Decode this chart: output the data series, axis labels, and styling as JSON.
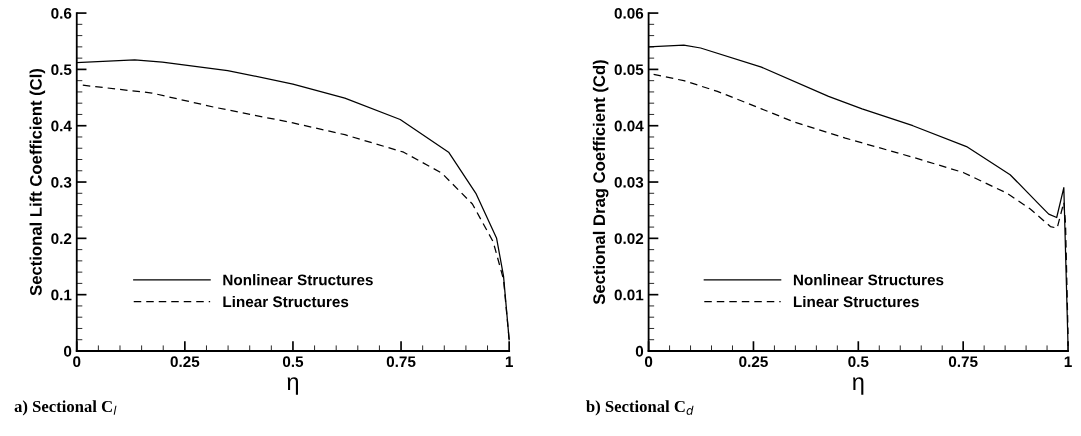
{
  "chart_data": [
    {
      "type": "line",
      "xlabel": "η",
      "ylabel": "Sectional Lift Coefficient (Cl)",
      "xlim": [
        0,
        1
      ],
      "ylim": [
        0,
        0.6
      ],
      "xticks": [
        0,
        0.25,
        0.5,
        0.75,
        1
      ],
      "yticks": [
        0,
        0.1,
        0.2,
        0.3,
        0.4,
        0.5,
        0.6
      ],
      "grid": false,
      "legend": "bottom left",
      "annotations": [
        "a) Sectional C$_{l}$"
      ],
      "series": [
        {
          "name": "Nonlinear Structures",
          "color": "#000000",
          "line_style": "solid",
          "x": [
            0,
            0.134,
            0.198,
            0.349,
            0.5,
            0.62,
            0.748,
            0.86,
            0.923,
            0.971,
            0.987,
            1.0
          ],
          "values": [
            0.512,
            0.517,
            0.513,
            0.498,
            0.474,
            0.449,
            0.411,
            0.353,
            0.28,
            0.2,
            0.133,
            0.02
          ]
        },
        {
          "name": "Linear Structures",
          "color": "#000000",
          "line_style": "dashed",
          "x": [
            0.014,
            0.174,
            0.317,
            0.5,
            0.62,
            0.756,
            0.844,
            0.915,
            0.963,
            0.987,
            1.0
          ],
          "values": [
            0.472,
            0.458,
            0.433,
            0.405,
            0.384,
            0.353,
            0.316,
            0.261,
            0.194,
            0.127,
            0.02
          ]
        }
      ]
    },
    {
      "type": "line",
      "xlabel": "η",
      "ylabel": "Sectional Drag Coefficient (Cd)",
      "xlim": [
        0,
        1
      ],
      "ylim": [
        0,
        0.06
      ],
      "xticks": [
        0,
        0.25,
        0.5,
        0.75,
        1
      ],
      "yticks": [
        0,
        0.01,
        0.02,
        0.03,
        0.04,
        0.05,
        0.06
      ],
      "grid": false,
      "legend": "bottom left",
      "annotations": [
        "b) Sectional C$_{d}$"
      ],
      "series": [
        {
          "name": "Nonlinear Structures",
          "color": "#000000",
          "line_style": "solid",
          "x": [
            0,
            0.084,
            0.124,
            0.269,
            0.429,
            0.509,
            0.63,
            0.758,
            0.862,
            0.934,
            0.954,
            0.973,
            0.99,
            1.0
          ],
          "values": [
            0.054,
            0.0543,
            0.0538,
            0.0504,
            0.0452,
            0.043,
            0.04,
            0.0363,
            0.0313,
            0.0258,
            0.0243,
            0.0237,
            0.029,
            0.001
          ]
        },
        {
          "name": "Linear Structures",
          "color": "#000000",
          "line_style": "dashed",
          "x": [
            0.012,
            0.084,
            0.164,
            0.269,
            0.349,
            0.469,
            0.63,
            0.75,
            0.855,
            0.91,
            0.958,
            0.974,
            0.99,
            0.994,
            1.0
          ],
          "values": [
            0.0491,
            0.048,
            0.0461,
            0.043,
            0.0406,
            0.0378,
            0.0344,
            0.0317,
            0.028,
            0.0252,
            0.0221,
            0.0218,
            0.0264,
            0.0227,
            0.003
          ]
        }
      ]
    }
  ]
}
